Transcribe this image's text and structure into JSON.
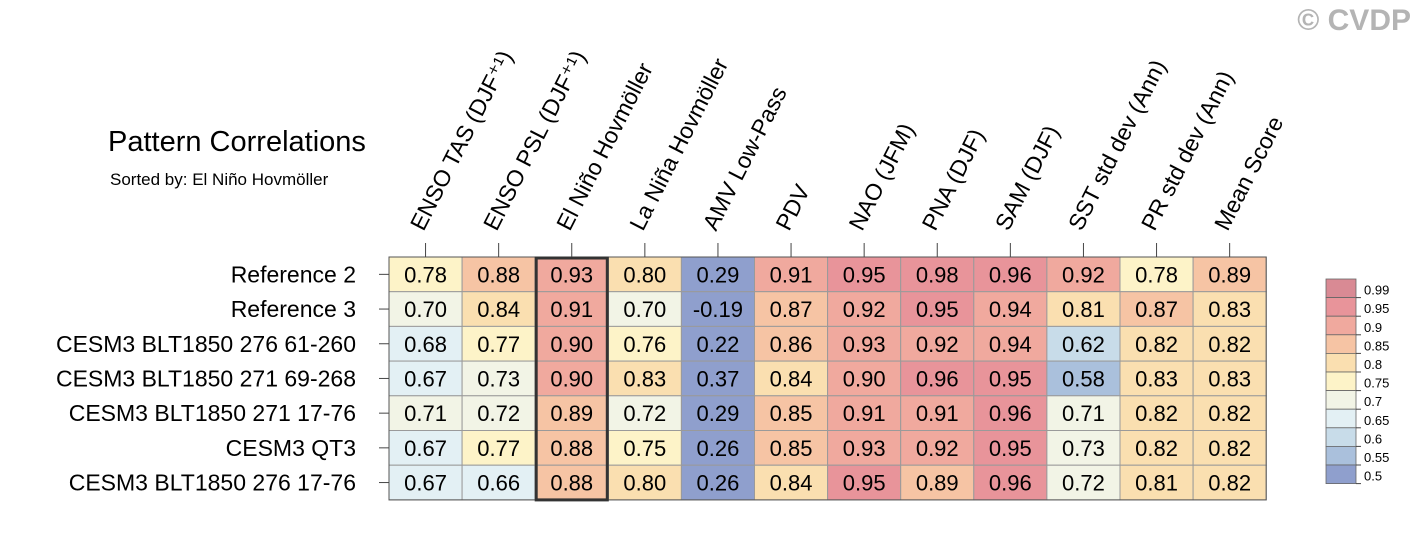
{
  "watermark": "© CVDP",
  "chart_data": {
    "type": "heatmap",
    "title": "Pattern Correlations",
    "subtitle": "Sorted by: El Niño Hovmöller",
    "columns": [
      "ENSO TAS (DJF⁺¹)",
      "ENSO PSL (DJF⁺¹)",
      "El Niño Hovmöller",
      "La Niña Hovmöller",
      "AMV Low-Pass",
      "PDV",
      "NAO (JFM)",
      "PNA (DJF)",
      "SAM (DJF)",
      "SST std dev (Ann)",
      "PR std dev (Ann)",
      "Mean Score"
    ],
    "rows": [
      "Reference 2",
      "Reference 3",
      "CESM3 BLT1850 276 61-260",
      "CESM3 BLT1850 271 69-268",
      "CESM3 BLT1850 271 17-76",
      "CESM3 QT3",
      "CESM3 BLT1850 276 17-76"
    ],
    "values": [
      [
        "0.78",
        "0.88",
        "0.93",
        "0.80",
        "0.29",
        "0.91",
        "0.95",
        "0.98",
        "0.96",
        "0.92",
        "0.78",
        "0.89"
      ],
      [
        "0.70",
        "0.84",
        "0.91",
        "0.70",
        "-0.19",
        "0.87",
        "0.92",
        "0.95",
        "0.94",
        "0.81",
        "0.87",
        "0.83"
      ],
      [
        "0.68",
        "0.77",
        "0.90",
        "0.76",
        "0.22",
        "0.86",
        "0.93",
        "0.92",
        "0.94",
        "0.62",
        "0.82",
        "0.82"
      ],
      [
        "0.67",
        "0.73",
        "0.90",
        "0.83",
        "0.37",
        "0.84",
        "0.90",
        "0.96",
        "0.95",
        "0.58",
        "0.83",
        "0.83"
      ],
      [
        "0.71",
        "0.72",
        "0.89",
        "0.72",
        "0.29",
        "0.85",
        "0.91",
        "0.91",
        "0.96",
        "0.71",
        "0.82",
        "0.82"
      ],
      [
        "0.67",
        "0.77",
        "0.88",
        "0.75",
        "0.26",
        "0.85",
        "0.93",
        "0.92",
        "0.95",
        "0.73",
        "0.82",
        "0.82"
      ],
      [
        "0.67",
        "0.66",
        "0.88",
        "0.80",
        "0.26",
        "0.84",
        "0.95",
        "0.89",
        "0.96",
        "0.72",
        "0.81",
        "0.82"
      ]
    ],
    "highlighted_column": "El Niño Hovmöller",
    "colorbar": {
      "labels": [
        "0.99",
        "0.95",
        "0.9",
        "0.85",
        "0.8",
        "0.75",
        "0.7",
        "0.65",
        "0.6",
        "0.55",
        "0.5"
      ],
      "colors_top_to_bottom": [
        "#d98a94",
        "#e8949a",
        "#f0a99e",
        "#f6c4a4",
        "#fadfb0",
        "#fdf3c8",
        "#f2f4e6",
        "#e3f0f4",
        "#c8dce9",
        "#aac0dc",
        "#8f9fcd"
      ]
    }
  }
}
